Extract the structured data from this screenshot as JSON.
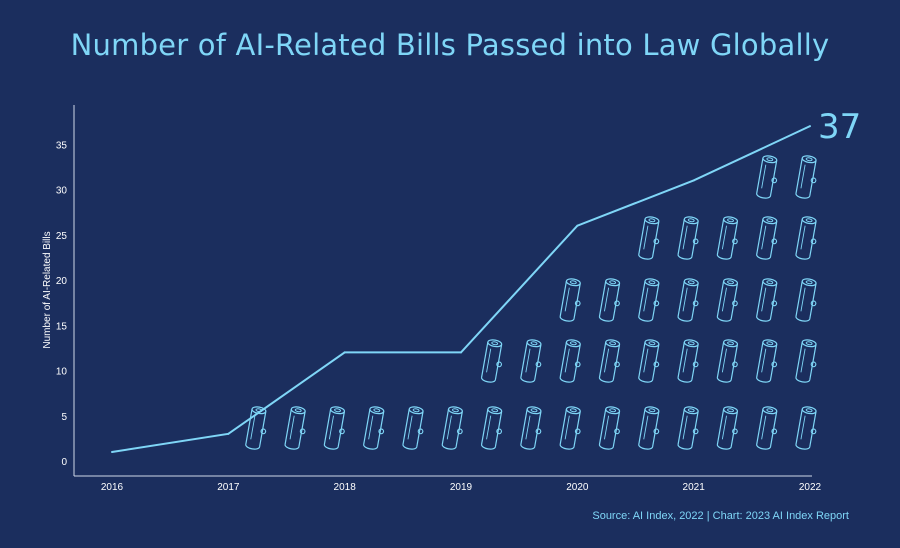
{
  "title": "Number of AI-Related Bills Passed into Law Globally",
  "source": "Source: AI Index, 2022 | Chart: 2023 AI Index Report",
  "colors": {
    "background": "#1b2e5e",
    "accent": "#7fd6f7",
    "axis": "#cfd8e8",
    "tick_text": "#ffffff"
  },
  "chart_data": {
    "type": "line",
    "title": "Number of AI-Related Bills Passed into Law Globally",
    "xlabel": "",
    "ylabel": "Number of AI-Related Bills",
    "x": [
      "2016",
      "2017",
      "2018",
      "2019",
      "2020",
      "2021",
      "2022"
    ],
    "series": [
      {
        "values": [
          1,
          3,
          12,
          12,
          26,
          31,
          37
        ]
      }
    ],
    "ylim": [
      0,
      38
    ],
    "yticks": [
      0,
      5,
      10,
      15,
      20,
      25,
      30,
      35
    ],
    "end_label": "37",
    "grid": false,
    "decoration": "scroll-icon pictogram rows under the line",
    "pictogram_rows": [
      15,
      9,
      7,
      5,
      2
    ]
  }
}
